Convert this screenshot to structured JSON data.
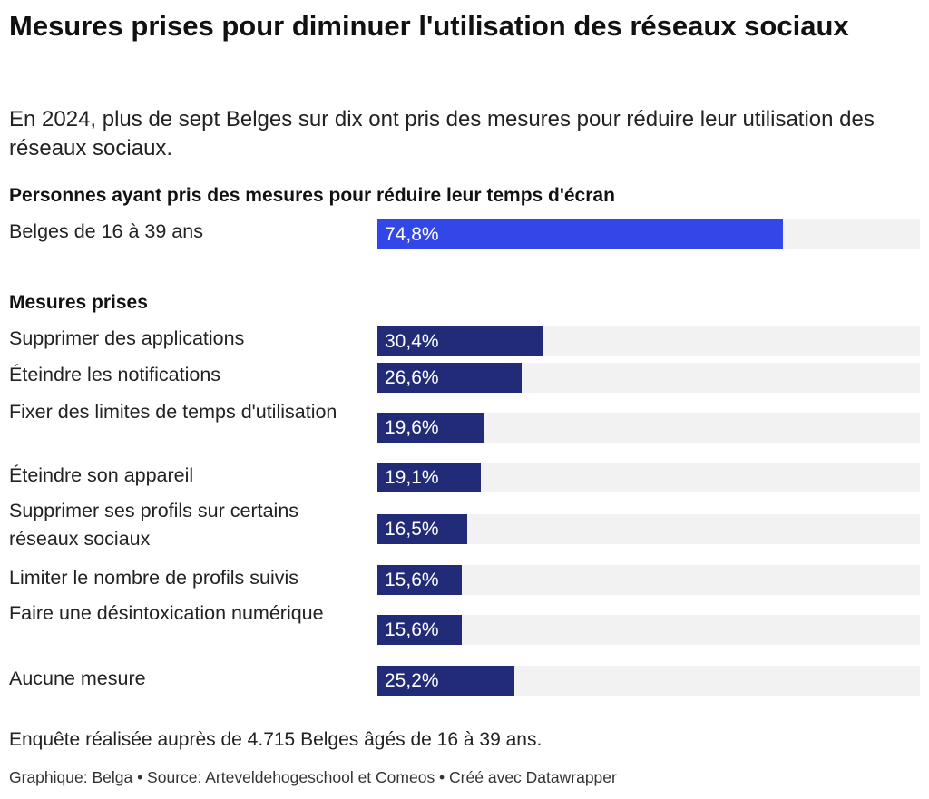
{
  "title": "Mesures prises pour diminuer l'utilisation des réseaux sociaux",
  "subtitle": "En 2024, plus de sept Belges sur dix ont pris des mesures pour réduire leur utilisation des réseaux sociaux.",
  "note": "Enquête réalisée auprès de 4.715 Belges âgés de 16 à 39 ans.",
  "footer": "Graphique: Belga • Source: Arteveldehogeschool et Comeos • Créé avec Datawrapper",
  "colors": {
    "highlight": "#3346e8",
    "bar": "#222b78",
    "track": "#f2f2f2"
  },
  "chart_data": [
    {
      "type": "bar",
      "orientation": "horizontal",
      "title": "Personnes ayant pris des mesures pour réduire leur temps d'écran",
      "categories": [
        "Belges de 16 à 39 ans"
      ],
      "values": [
        74.8
      ],
      "value_labels": [
        "74,8%"
      ],
      "xlim": [
        0,
        100
      ],
      "unit": "%"
    },
    {
      "type": "bar",
      "orientation": "horizontal",
      "title": "Mesures prises",
      "categories": [
        "Supprimer des applications",
        "Éteindre les notifications",
        "Fixer des limites de temps d'utilisation",
        "Éteindre son appareil",
        "Supprimer ses profils sur certains réseaux sociaux",
        "Limiter le nombre de profils suivis",
        "Faire une désintoxication numérique",
        "Aucune mesure"
      ],
      "values": [
        30.4,
        26.6,
        19.6,
        19.1,
        16.5,
        15.6,
        15.6,
        25.2
      ],
      "value_labels": [
        "30,4%",
        "26,6%",
        "19,6%",
        "19,1%",
        "16,5%",
        "15,6%",
        "15,6%",
        "25,2%"
      ],
      "xlim": [
        0,
        100
      ],
      "unit": "%"
    }
  ]
}
